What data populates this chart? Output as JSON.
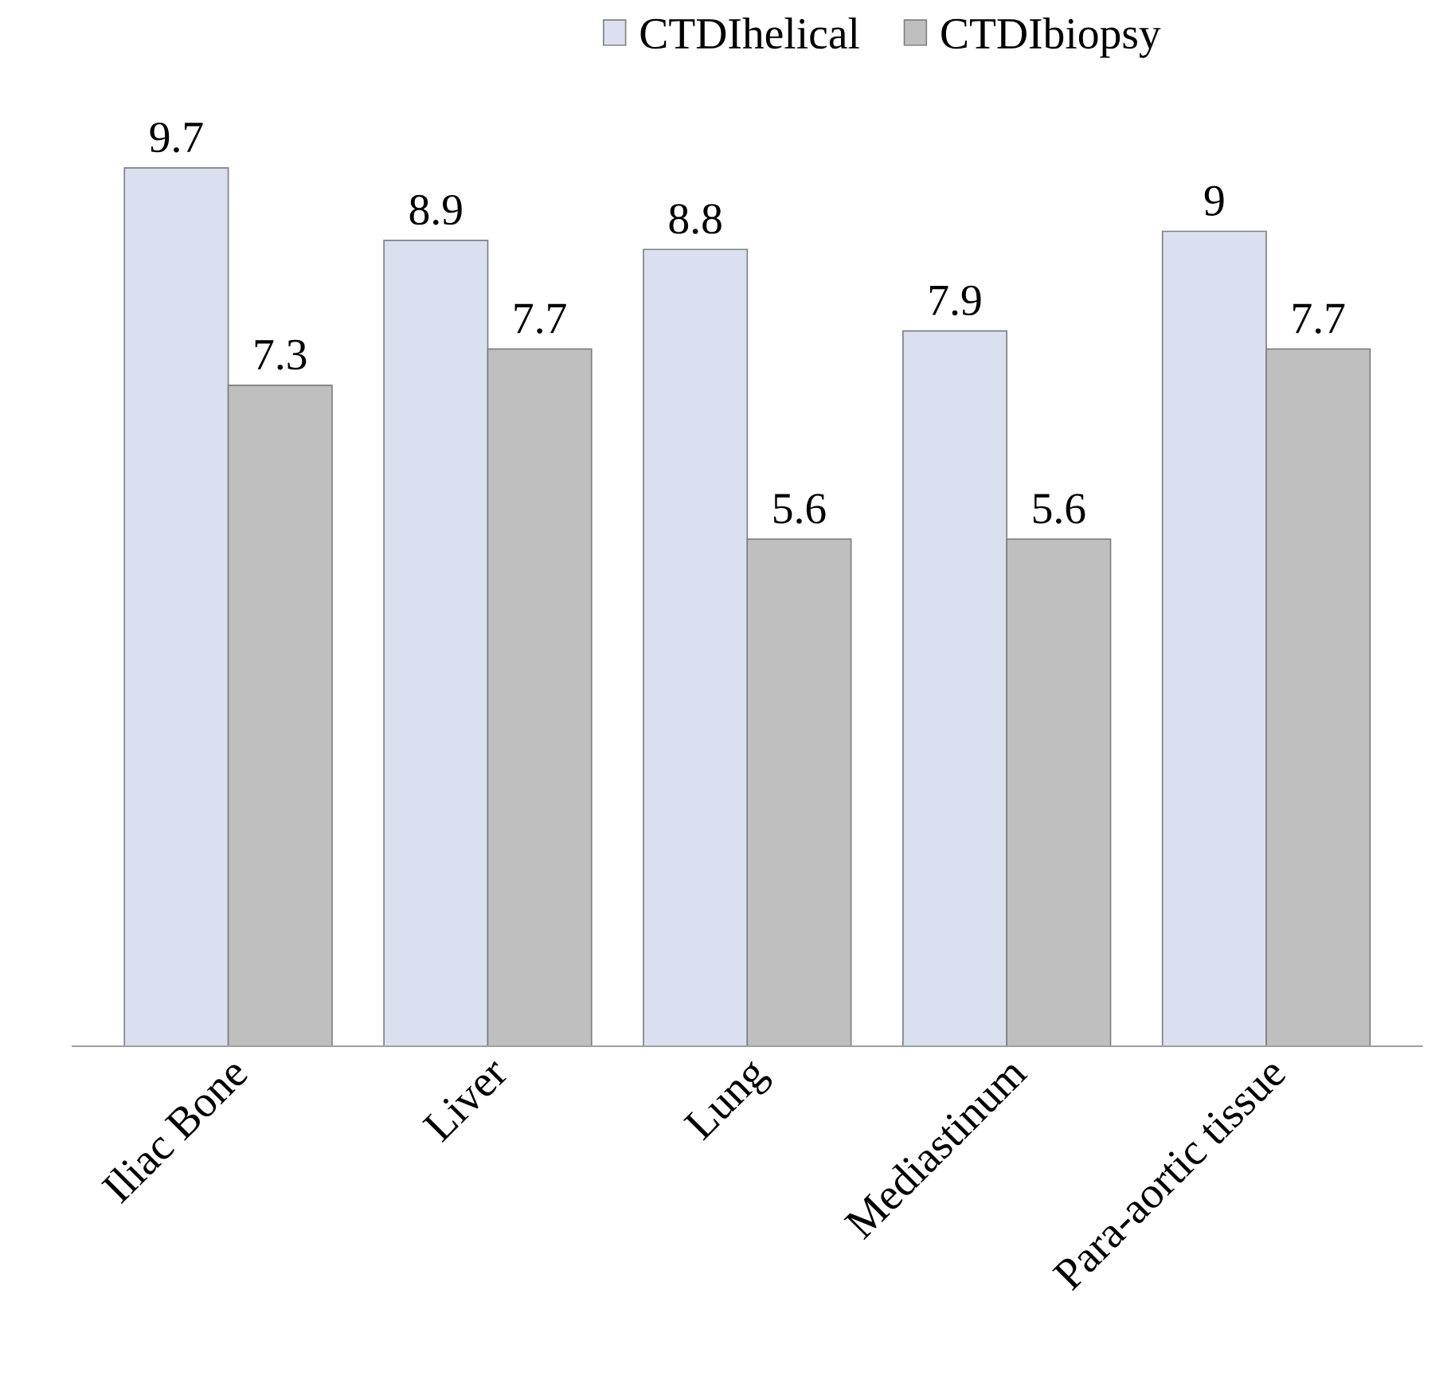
{
  "chart_data": {
    "type": "bar",
    "categories": [
      "Iliac Bone",
      "Liver",
      "Lung",
      "Mediastinum",
      "Para-aortic tissue"
    ],
    "series": [
      {
        "name": "CTDIhelical",
        "color": "#dae0f0",
        "values": [
          9.7,
          8.9,
          8.8,
          7.9,
          9
        ]
      },
      {
        "name": "CTDIbiopsy",
        "color": "#bfbfbf",
        "values": [
          7.3,
          7.7,
          5.6,
          5.6,
          7.7
        ]
      }
    ],
    "data_labels": true,
    "legend": "top",
    "grid": false
  }
}
